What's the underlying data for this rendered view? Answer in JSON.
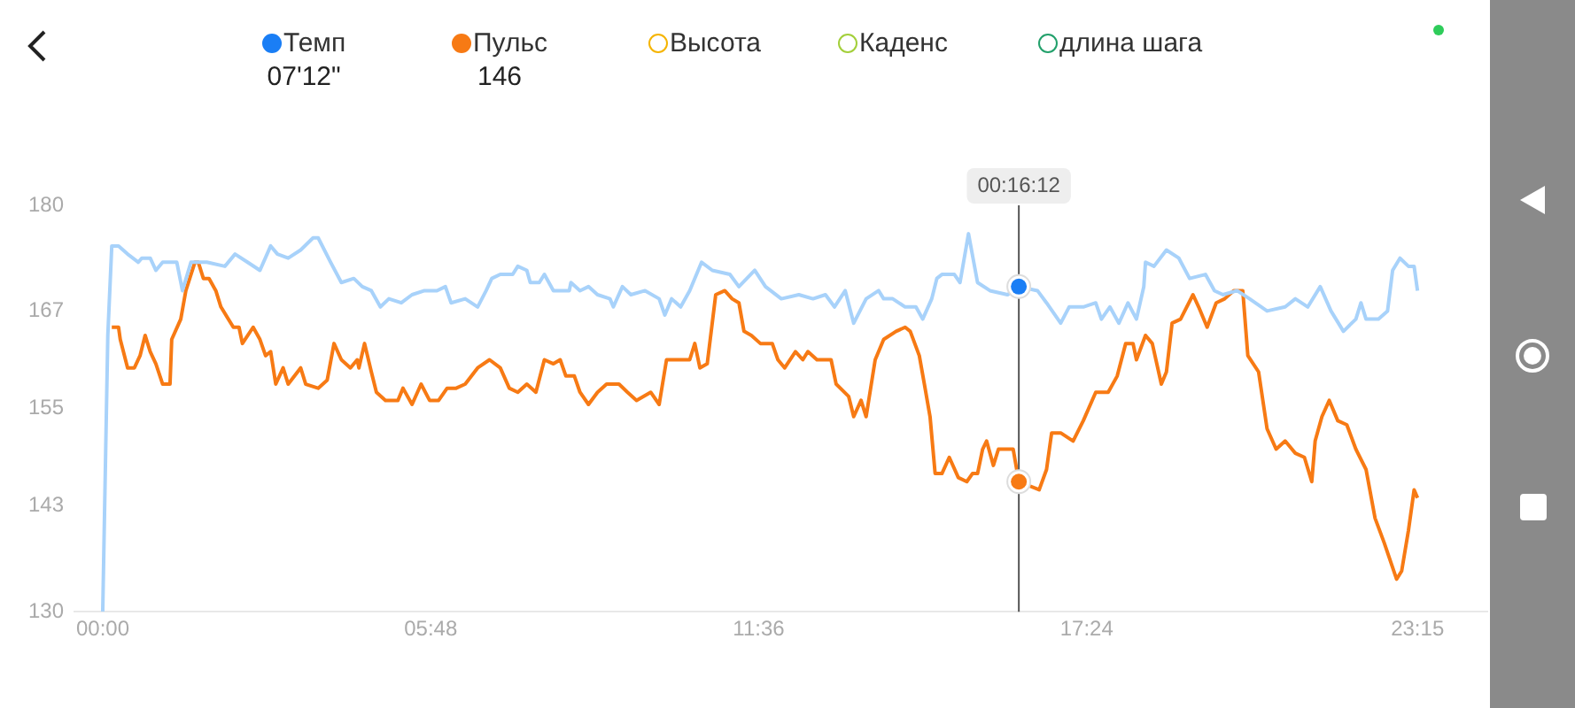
{
  "chart_data": {
    "type": "line",
    "legend": "top",
    "grid": false,
    "xlim": [
      -0.5,
      24.5
    ],
    "xticks": [
      {
        "value": 0,
        "label": "00:00"
      },
      {
        "value": 5.8,
        "label": "05:48"
      },
      {
        "value": 11.6,
        "label": "11:36"
      },
      {
        "value": 17.4,
        "label": "17:24"
      },
      {
        "value": 23.25,
        "label": "23:15"
      }
    ],
    "ylim": [
      130,
      180
    ],
    "yticks": [
      130,
      143,
      155,
      167,
      180
    ],
    "ref_lines": [
      {
        "axis": "x",
        "value": 16.2,
        "label": "00:16:12",
        "color": "#555555"
      }
    ],
    "annotations": [
      "07'12\"",
      "146"
    ],
    "series": [
      {
        "name": "Темп",
        "color": "#a8d2fa",
        "x": [
          0,
          0.09,
          0.16,
          0.28,
          0.44,
          0.63,
          0.69,
          0.84,
          0.94,
          1.06,
          1.31,
          1.41,
          1.56,
          1.84,
          2.16,
          2.34,
          2.56,
          2.78,
          2.97,
          3.09,
          3.28,
          3.5,
          3.72,
          3.81,
          4.03,
          4.22,
          4.44,
          4.59,
          4.75,
          4.91,
          5.06,
          5.28,
          5.47,
          5.69,
          5.91,
          6.06,
          6.16,
          6.41,
          6.63,
          6.78,
          6.88,
          7.03,
          7.25,
          7.34,
          7.5,
          7.56,
          7.72,
          7.81,
          7.97,
          8.25,
          8.28,
          8.44,
          8.59,
          8.75,
          8.97,
          9.03,
          9.19,
          9.34,
          9.59,
          9.84,
          9.94,
          10.06,
          10.22,
          10.38,
          10.59,
          10.78,
          11.09,
          11.25,
          11.53,
          11.72,
          12.0,
          12.31,
          12.56,
          12.78,
          12.94,
          13.13,
          13.28,
          13.5,
          13.72,
          13.81,
          13.97,
          14.19,
          14.38,
          14.5,
          14.66,
          14.75,
          14.84,
          15.06,
          15.16,
          15.31,
          15.47,
          15.69,
          16.0,
          16.2,
          16.53,
          16.69,
          16.94,
          17.09,
          17.34,
          17.56,
          17.66,
          17.81,
          17.97,
          18.13,
          18.28,
          18.41,
          18.44,
          18.59,
          18.81,
          19.03,
          19.22,
          19.5,
          19.66,
          19.81,
          20.06,
          20.28,
          20.59,
          20.91,
          21.09,
          21.31,
          21.53,
          21.72,
          21.94,
          22.16,
          22.25,
          22.34,
          22.56,
          22.72,
          22.81,
          22.94,
          23.09,
          23.19,
          23.25
        ],
        "values": [
          130,
          164,
          175,
          175,
          174,
          173,
          173.5,
          173.5,
          172,
          173,
          173,
          169.5,
          173,
          173,
          172.5,
          174,
          173,
          172,
          175,
          174,
          173.5,
          174.5,
          176,
          176,
          173,
          170.5,
          171,
          170,
          169.5,
          167.5,
          168.5,
          168,
          169,
          169.5,
          169.5,
          170,
          168,
          168.5,
          167.5,
          169.5,
          171,
          171.5,
          171.5,
          172.5,
          172,
          170.5,
          170.5,
          171.5,
          169.5,
          169.5,
          170.5,
          169.5,
          170,
          169,
          168.5,
          167.5,
          170,
          169,
          169.5,
          168.5,
          166.5,
          168.5,
          167.5,
          169.5,
          173,
          172,
          171.5,
          170,
          172,
          170,
          168.5,
          169,
          168.5,
          169,
          167.5,
          169.5,
          165.5,
          168.5,
          169.5,
          168.5,
          168.5,
          167.5,
          167.5,
          166,
          168.5,
          171,
          171.5,
          171.5,
          170.5,
          176.5,
          170.5,
          169.5,
          169,
          170,
          169.5,
          168,
          165.5,
          167.5,
          167.5,
          168,
          166,
          167.5,
          165.5,
          168,
          166,
          170,
          173,
          172.5,
          174.5,
          173.5,
          171,
          171.5,
          169.5,
          169,
          169.5,
          168.5,
          167,
          167.5,
          168.5,
          167.5,
          170,
          167,
          164.5,
          166,
          168,
          166,
          166,
          167,
          172,
          173.5,
          172.5,
          172.5,
          169.5
        ]
      },
      {
        "name": "Пульс",
        "color": "#f77a14",
        "x": [
          0.16,
          0.28,
          0.31,
          0.44,
          0.56,
          0.66,
          0.75,
          0.84,
          0.94,
          1.06,
          1.19,
          1.22,
          1.38,
          1.47,
          1.63,
          1.69,
          1.78,
          1.88,
          2.0,
          2.09,
          2.31,
          2.41,
          2.47,
          2.66,
          2.78,
          2.88,
          2.97,
          3.06,
          3.19,
          3.28,
          3.5,
          3.59,
          3.81,
          3.97,
          4.09,
          4.22,
          4.38,
          4.5,
          4.53,
          4.63,
          4.75,
          4.84,
          5.0,
          5.22,
          5.31,
          5.47,
          5.63,
          5.78,
          5.94,
          6.09,
          6.25,
          6.41,
          6.63,
          6.84,
          7.03,
          7.19,
          7.34,
          7.5,
          7.66,
          7.81,
          7.97,
          8.09,
          8.19,
          8.34,
          8.44,
          8.59,
          8.75,
          8.91,
          9.13,
          9.28,
          9.44,
          9.69,
          9.84,
          9.97,
          10.38,
          10.47,
          10.56,
          10.69,
          10.84,
          11.0,
          11.13,
          11.25,
          11.34,
          11.47,
          11.63,
          11.84,
          11.94,
          12.06,
          12.25,
          12.38,
          12.47,
          12.63,
          12.88,
          12.97,
          13.19,
          13.28,
          13.41,
          13.5,
          13.66,
          13.81,
          14.03,
          14.19,
          14.28,
          14.44,
          14.53,
          14.63,
          14.72,
          14.84,
          14.97,
          15.13,
          15.28,
          15.38,
          15.47,
          15.56,
          15.63,
          15.75,
          15.84,
          16.0,
          16.1,
          16.2,
          16.56,
          16.69,
          16.78,
          16.94,
          17.16,
          17.34,
          17.56,
          17.78,
          17.94,
          18.09,
          18.22,
          18.28,
          18.44,
          18.56,
          18.72,
          18.81,
          18.91,
          19.06,
          19.28,
          19.38,
          19.53,
          19.69,
          19.84,
          20.0,
          20.16,
          20.25,
          20.44,
          20.59,
          20.75,
          20.91,
          21.09,
          21.25,
          21.38,
          21.44,
          21.56,
          21.69,
          21.84,
          22.0,
          22.16,
          22.34,
          22.5,
          22.66,
          22.88,
          22.97,
          23.09,
          23.19,
          23.25
        ],
        "values": [
          165,
          165,
          163.5,
          160,
          160,
          161.5,
          164,
          162,
          160.5,
          158,
          158,
          163.5,
          166,
          169.5,
          173,
          173,
          171,
          171,
          169.5,
          167.5,
          165,
          165,
          163,
          165,
          163.5,
          161.5,
          162,
          158,
          160,
          158,
          160,
          158,
          157.5,
          158.5,
          163,
          161,
          160,
          161,
          160,
          163,
          159.5,
          157,
          156,
          156,
          157.5,
          155.5,
          158,
          156,
          156,
          157.5,
          157.5,
          158,
          160,
          161,
          160,
          157.5,
          157,
          158,
          157,
          161,
          160.5,
          161,
          159,
          159,
          157,
          155.5,
          157,
          158,
          158,
          157,
          156,
          157,
          155.5,
          161,
          161,
          163,
          160,
          160.5,
          169,
          169.5,
          168.5,
          168,
          164.5,
          164,
          163,
          163,
          161,
          160,
          162,
          161,
          162,
          161,
          161,
          158,
          156.5,
          154,
          156,
          154,
          161,
          163.5,
          164.5,
          165,
          164.5,
          161.5,
          158,
          154,
          147,
          147,
          149,
          146.5,
          146,
          147,
          147,
          150,
          151,
          148,
          150,
          150,
          150,
          146,
          145,
          147.5,
          152,
          152,
          151,
          153.5,
          157,
          157,
          159,
          163,
          163,
          161,
          164,
          163,
          158,
          159.5,
          165.5,
          166,
          169,
          167.5,
          165,
          168,
          168.5,
          169.5,
          169.5,
          161.5,
          159.5,
          152.5,
          150,
          151,
          149.5,
          149,
          146,
          151,
          154,
          156,
          153.5,
          153,
          150,
          147.5,
          141.5,
          138.5,
          134,
          135,
          140,
          145,
          144
        ]
      },
      {
        "name": "Высота",
        "color": "#f5b400"
      },
      {
        "name": "Каденс",
        "color": "#a3cf3a"
      },
      {
        "name": "длина шага",
        "color": "#22a06b"
      }
    ]
  }
}
